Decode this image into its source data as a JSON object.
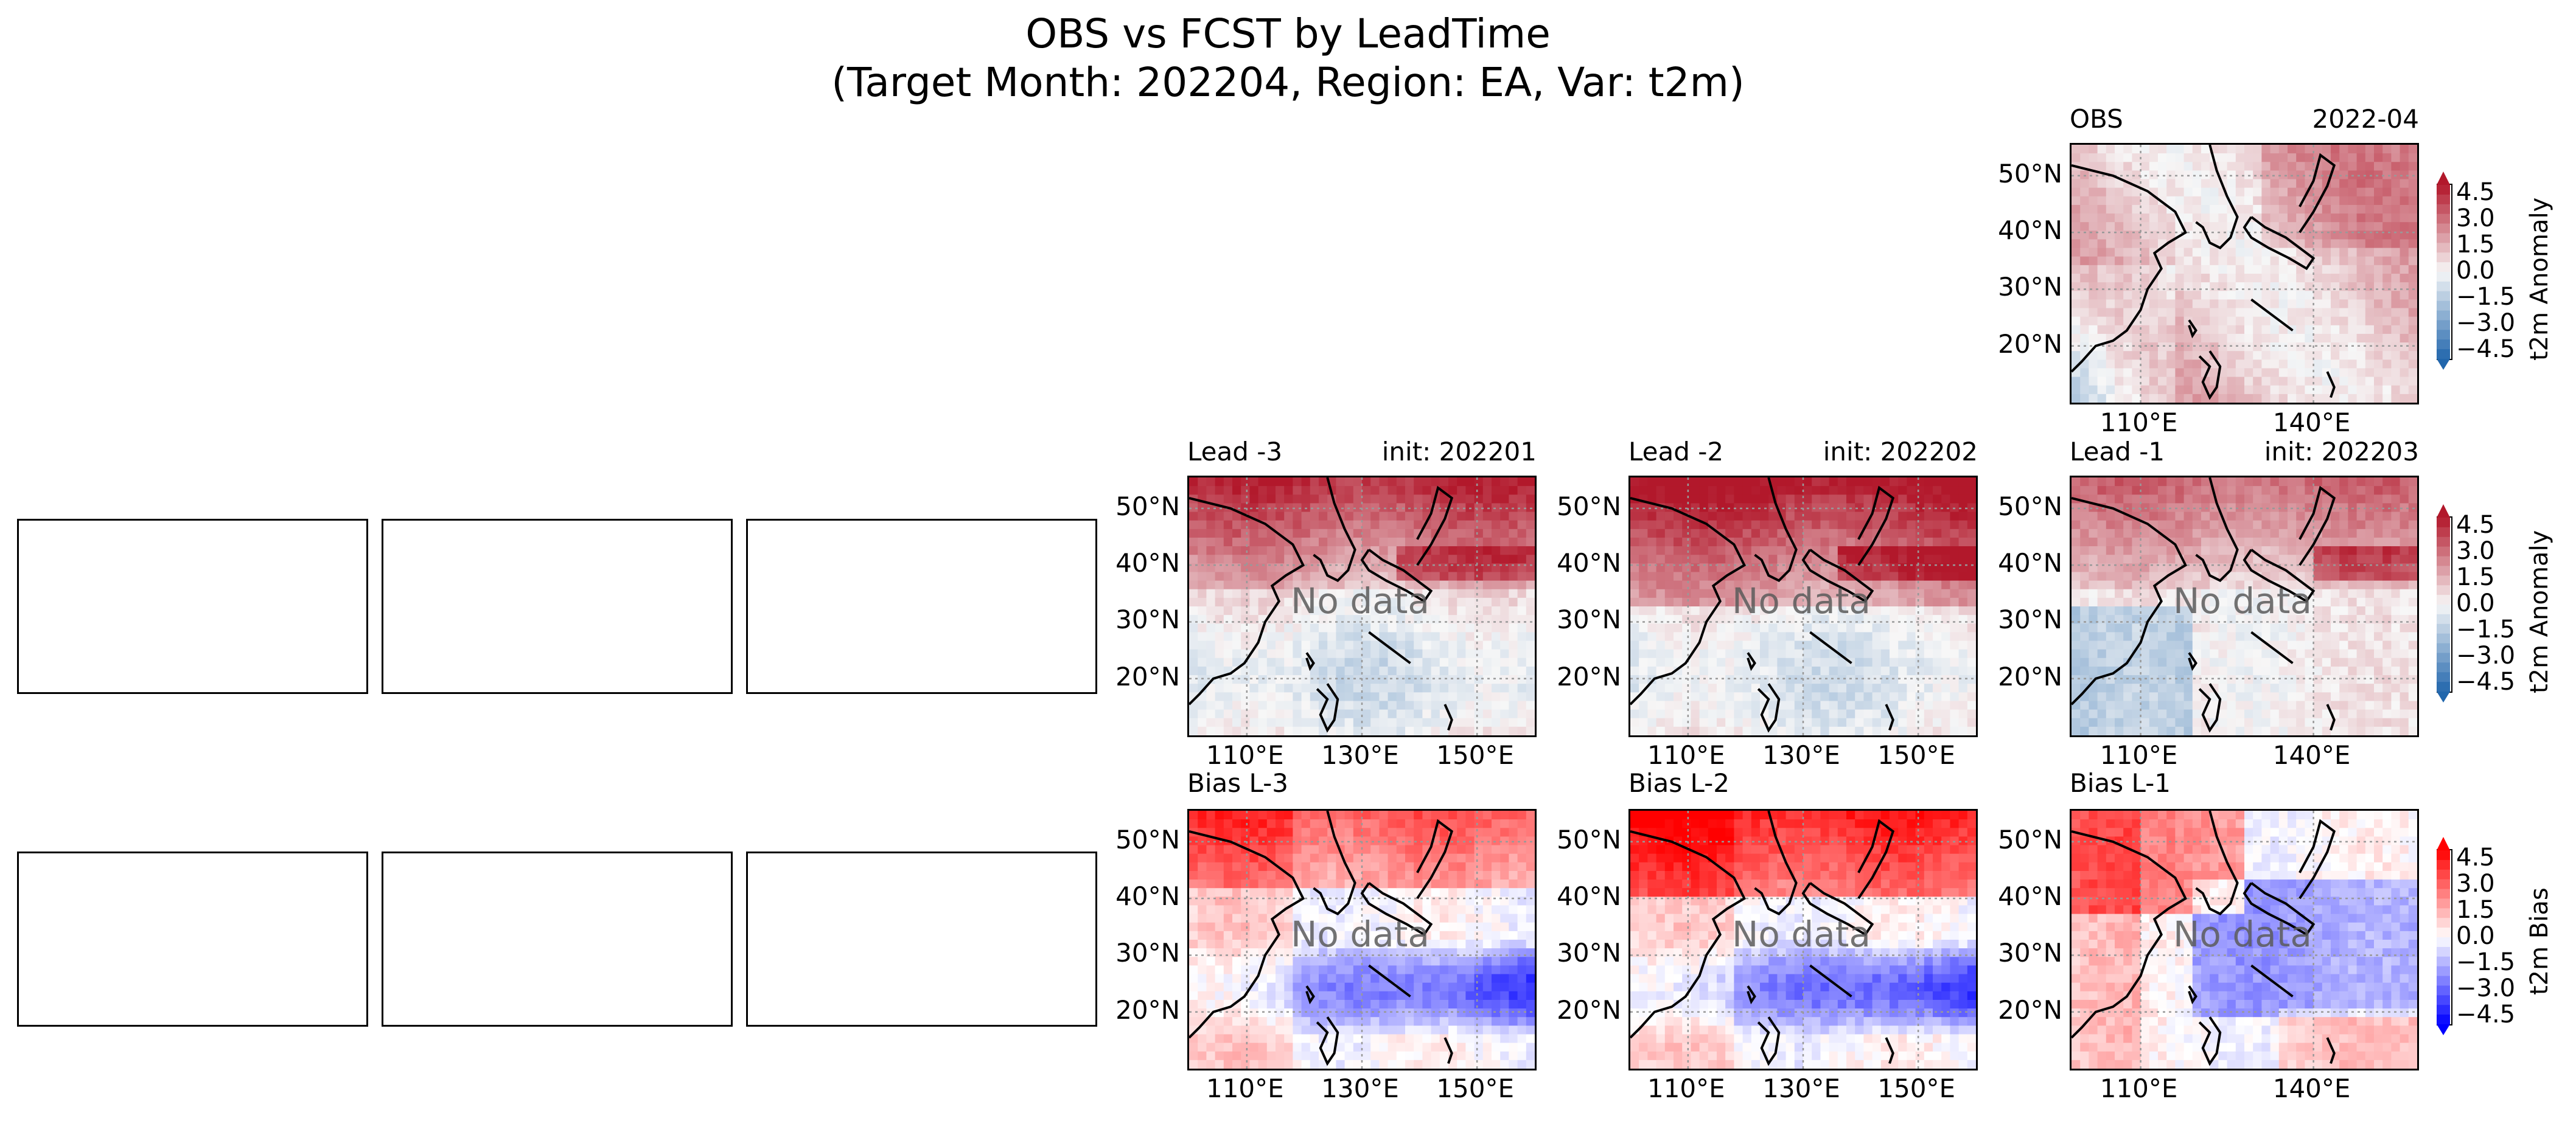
{
  "figure": {
    "title_line1": "OBS vs FCST by LeadTime",
    "title_line2": "(Target Month: 202204, Region: EA, Var: t2m)"
  },
  "panels": {
    "obs": {
      "left_title": "OBS",
      "right_title": "2022-04"
    },
    "lead3": {
      "left_title": "Lead -3",
      "right_title": "init: 202201"
    },
    "lead2": {
      "left_title": "Lead -2",
      "right_title": "init: 202202"
    },
    "lead1": {
      "left_title": "Lead -1",
      "right_title": "init: 202203"
    },
    "bias3": {
      "left_title": "Bias L-3"
    },
    "bias2": {
      "left_title": "Bias L-2"
    },
    "bias1": {
      "left_title": "Bias L-1"
    },
    "no_data_label": "No data"
  },
  "axes": {
    "lat_ticks": [
      "50°N",
      "40°N",
      "30°N",
      "20°N"
    ],
    "lon_ticks_wide": [
      "110°E",
      "130°E",
      "150°E"
    ],
    "lon_ticks_narrow": [
      "110°E",
      "140°E"
    ]
  },
  "colorbars": {
    "anomaly": {
      "label": "t2m Anomaly",
      "cmap": "RdBu_r"
    },
    "bias": {
      "label": "t2m Bias",
      "cmap": "bwr"
    },
    "ticks": [
      "4.5",
      "3.0",
      "1.5",
      "0.0",
      "−1.5",
      "−3.0",
      "−4.5"
    ],
    "range": [
      -4.5,
      4.5
    ]
  },
  "colors": {
    "anomaly_low": "#2166ac",
    "anomaly_mid": "#f7f7f7",
    "anomaly_high": "#b2182b",
    "bias_low": "#0000ff",
    "bias_mid": "#ffffff",
    "bias_high": "#ff0000",
    "coastline": "#000000",
    "gridline": "#999999"
  },
  "chart_data": [
    {
      "type": "heatmap",
      "panel": "OBS",
      "subtitle": "2022-04",
      "xlabel": "",
      "ylabel": "",
      "x_ticks": [
        "110°E",
        "140°E"
      ],
      "y_ticks": [
        "50°N",
        "40°N",
        "30°N",
        "20°N"
      ],
      "colorbar": "t2m Anomaly",
      "vmin": -4.5,
      "vmax": 4.5,
      "pattern": "mostly warm anomalies (+1 to +2), cool (-1 to -2) over south China"
    },
    {
      "type": "heatmap",
      "panel": "Lead -3",
      "subtitle": "init: 202201",
      "x_ticks": [
        "110°E",
        "130°E",
        "150°E"
      ],
      "y_ticks": [
        "50°N",
        "40°N",
        "30°N",
        "20°N"
      ],
      "colorbar": "t2m Anomaly",
      "vmin": -4.5,
      "vmax": 4.5,
      "annotation": "No data",
      "pattern": "strong warm north (+2 to +4), weak cool band 20-30°N"
    },
    {
      "type": "heatmap",
      "panel": "Lead -2",
      "subtitle": "init: 202202",
      "x_ticks": [
        "110°E",
        "130°E",
        "150°E"
      ],
      "y_ticks": [
        "50°N",
        "40°N",
        "30°N",
        "20°N"
      ],
      "colorbar": "t2m Anomaly",
      "vmin": -4.5,
      "vmax": 4.5,
      "annotation": "No data",
      "pattern": "very warm north (+3 to +4.5), weak cool band 20-30°N"
    },
    {
      "type": "heatmap",
      "panel": "Lead -1",
      "subtitle": "init: 202203",
      "x_ticks": [
        "110°E",
        "140°E"
      ],
      "y_ticks": [
        "50°N",
        "40°N",
        "30°N",
        "20°N"
      ],
      "colorbar": "t2m Anomaly",
      "vmin": -4.5,
      "vmax": 4.5,
      "annotation": "No data",
      "pattern": "warm north (+2 to +3), cool southwest"
    },
    {
      "type": "heatmap",
      "panel": "Bias L-3",
      "x_ticks": [
        "110°E",
        "130°E",
        "150°E"
      ],
      "y_ticks": [
        "50°N",
        "40°N",
        "30°N",
        "20°N"
      ],
      "colorbar": "t2m Bias",
      "vmin": -4.5,
      "vmax": 4.5,
      "annotation": "No data",
      "pattern": "positive bias north (+2 to +3), negative bias 20-30°N east (-2 to -3)"
    },
    {
      "type": "heatmap",
      "panel": "Bias L-2",
      "x_ticks": [
        "110°E",
        "130°E",
        "150°E"
      ],
      "y_ticks": [
        "50°N",
        "40°N",
        "30°N",
        "20°N"
      ],
      "colorbar": "t2m Bias",
      "vmin": -4.5,
      "vmax": 4.5,
      "annotation": "No data",
      "pattern": "strong positive bias north (+3 to +4), negative bias 20-30°N east (-2 to -3)"
    },
    {
      "type": "heatmap",
      "panel": "Bias L-1",
      "x_ticks": [
        "110°E",
        "140°E"
      ],
      "y_ticks": [
        "50°N",
        "40°N",
        "30°N",
        "20°N"
      ],
      "colorbar": "t2m Bias",
      "vmin": -4.5,
      "vmax": 4.5,
      "annotation": "No data",
      "pattern": "positive bias north-west, negative bias centre (-1 to -2)"
    }
  ]
}
